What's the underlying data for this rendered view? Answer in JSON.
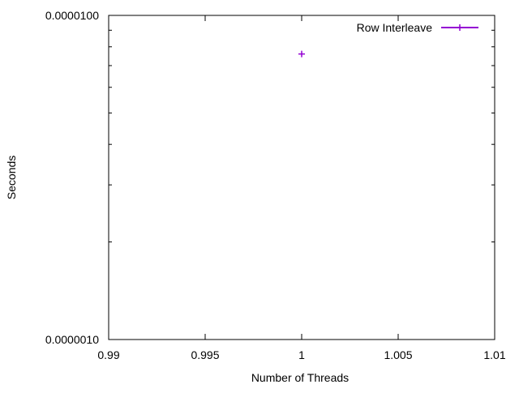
{
  "chart_data": {
    "type": "scatter",
    "title": "",
    "xlabel": "Number of Threads",
    "ylabel": "Seconds",
    "xlim": [
      0.99,
      1.01
    ],
    "ylim": [
      1e-06,
      1e-05
    ],
    "y_scale": "log",
    "grid": false,
    "legend_position": "top-right",
    "x_ticks": [
      {
        "value": 0.99,
        "label": "0.99"
      },
      {
        "value": 0.995,
        "label": "0.995"
      },
      {
        "value": 1,
        "label": "1"
      },
      {
        "value": 1.005,
        "label": "1.005"
      },
      {
        "value": 1.01,
        "label": "1.01"
      }
    ],
    "y_ticks": [
      {
        "value": 1e-06,
        "label": "0.0000010"
      },
      {
        "value": 1e-05,
        "label": "0.0000100"
      }
    ],
    "series": [
      {
        "name": "Row Interleave",
        "color": "#9400d3",
        "marker": "plus",
        "points": [
          {
            "x": 1,
            "y": 7.6e-06
          }
        ]
      }
    ]
  }
}
